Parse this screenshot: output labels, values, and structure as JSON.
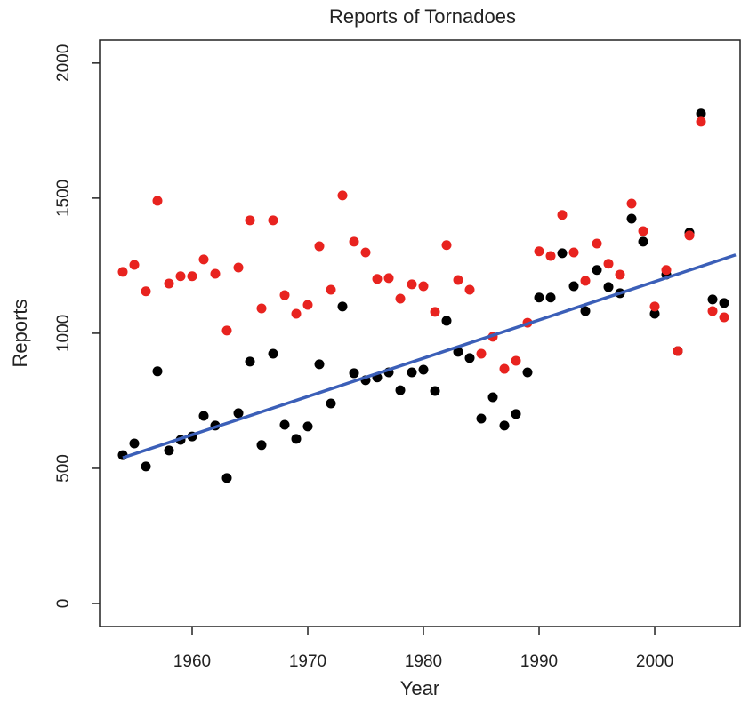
{
  "chart_data": {
    "type": "scatter",
    "title": "Reports of Tornadoes",
    "x_label": "Year",
    "y_label": "Reports",
    "x": [
      1954,
      1955,
      1956,
      1957,
      1958,
      1959,
      1960,
      1961,
      1962,
      1963,
      1964,
      1965,
      1966,
      1967,
      1968,
      1969,
      1970,
      1971,
      1972,
      1973,
      1974,
      1975,
      1976,
      1977,
      1978,
      1979,
      1980,
      1981,
      1982,
      1983,
      1984,
      1985,
      1986,
      1987,
      1988,
      1989,
      1990,
      1991,
      1992,
      1993,
      1994,
      1995,
      1996,
      1997,
      1998,
      1999,
      2000,
      2001,
      2002,
      2003,
      2004,
      2005,
      2006
    ],
    "series": [
      {
        "color": "#000000",
        "values": [
          549,
          592,
          507,
          859,
          566,
          605,
          618,
          694,
          658,
          464,
          704,
          895,
          586,
          924,
          661,
          609,
          655,
          885,
          740,
          1099,
          852,
          826,
          836,
          855,
          789,
          855,
          865,
          786,
          1046,
          931,
          908,
          684,
          763,
          658,
          701,
          855,
          1132,
          1132,
          1296,
          1174,
          1082,
          1234,
          1171,
          1148,
          1424,
          1339,
          1072,
          1217,
          934,
          1372,
          1813,
          1125,
          1112
        ]
      },
      {
        "color": "#e8231f",
        "values": [
          1227,
          1253,
          1155,
          1490,
          1184,
          1211,
          1211,
          1273,
          1220,
          1010,
          1243,
          1418,
          1092,
          1418,
          1141,
          1072,
          1105,
          1322,
          1161,
          1510,
          1339,
          1299,
          1201,
          1204,
          1128,
          1181,
          1174,
          1079,
          1326,
          1197,
          1161,
          924,
          987,
          868,
          898,
          1039,
          1303,
          1286,
          1438,
          1299,
          1194,
          1332,
          1257,
          1217,
          1480,
          1378,
          1099,
          1234,
          934,
          1362,
          1783,
          1082,
          1059
        ]
      }
    ],
    "trend": {
      "color": "#3b5fb8",
      "x": [
        1954,
        2007
      ],
      "values": [
        539,
        1290
      ]
    },
    "xlim": [
      1952,
      2007.46
    ],
    "ylim": [
      -85.5,
      2085
    ],
    "xticks": [
      1960,
      1970,
      1980,
      1990,
      2000
    ],
    "yticks": [
      0,
      500,
      1000,
      1500,
      2000
    ]
  }
}
